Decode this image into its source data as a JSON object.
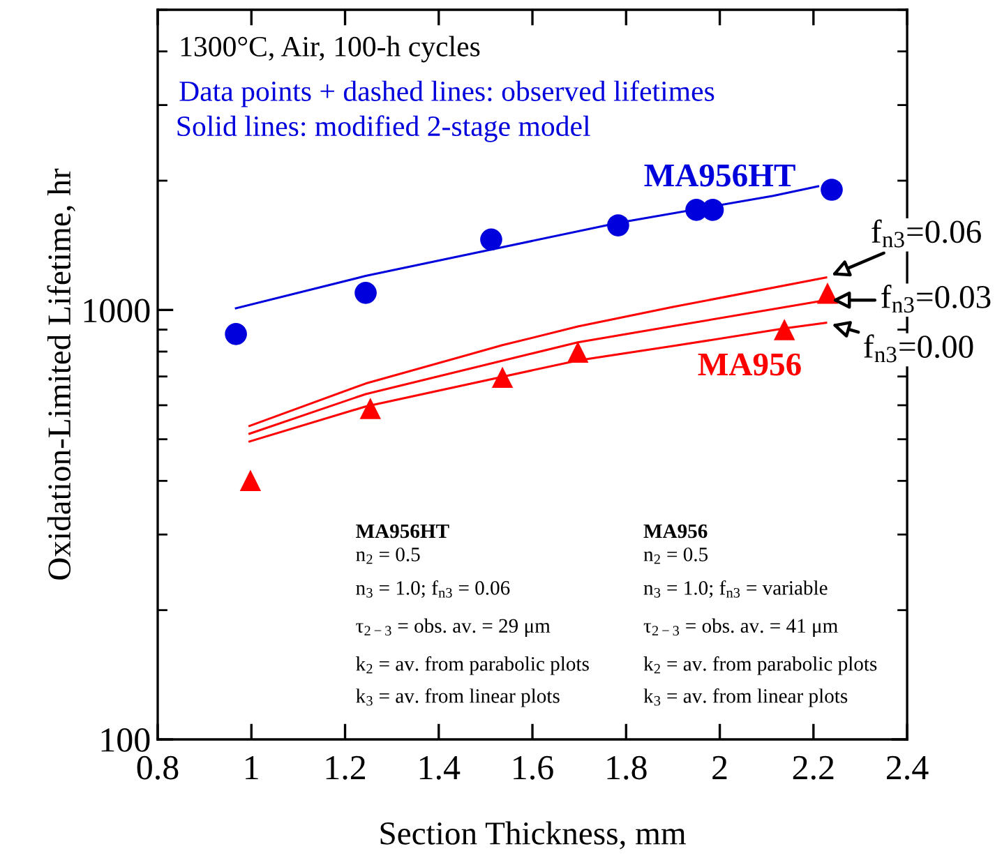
{
  "chart_data": {
    "type": "scatter",
    "xlabel": "Section Thickness, mm",
    "ylabel": "Oxidation-Limited Lifetime, hr",
    "log": "y",
    "xlim": [
      0.8,
      2.4
    ],
    "ylim": [
      100,
      5000
    ],
    "xticks": [
      0.8,
      1,
      1.2,
      1.4,
      1.6,
      1.8,
      2,
      2.2,
      2.4
    ],
    "yticks": [
      100,
      1000
    ],
    "grid": false,
    "legend": false,
    "series": [
      {
        "name": "MA956HT",
        "marker": "circle",
        "color": "#0000dd",
        "x": [
          0.967,
          1.244,
          1.512,
          1.783,
          1.95,
          1.985,
          2.239
        ],
        "values": [
          879,
          1096,
          1459,
          1574,
          1710,
          1710,
          1905
        ]
      },
      {
        "name": "MA956",
        "marker": "triangle",
        "color": "#ff0000",
        "x": [
          0.998,
          1.254,
          1.536,
          1.697,
          2.138,
          2.23
        ],
        "values": [
          401,
          590,
          697,
          798,
          900,
          1094
        ]
      },
      {
        "type": "line",
        "marker": "none",
        "line_style": "solid",
        "color": "#0000dd",
        "x": [
          0.967,
          1.244,
          1.512,
          1.783,
          2.114,
          2.21
        ],
        "values": [
          1009,
          1200,
          1383,
          1595,
          1844,
          1940
        ]
      },
      {
        "name": "f$_{n3}$=0.06",
        "type": "line",
        "marker": "none",
        "line_style": "solid",
        "color": "#ff0000",
        "x": [
          0.996,
          1.244,
          1.536,
          1.697,
          1.9,
          2.227
        ],
        "values": [
          537,
          674,
          828,
          915,
          1016,
          1190
        ]
      },
      {
        "name": "f$_{n3}$=0.03",
        "type": "line",
        "marker": "none",
        "line_style": "solid",
        "color": "#ff0000",
        "x": [
          0.996,
          1.244,
          1.697,
          1.9,
          2.227
        ],
        "values": [
          515,
          637,
          841,
          917,
          1054
        ]
      },
      {
        "name": "f$_{n3}$=0.00",
        "type": "line",
        "marker": "none",
        "line_style": "solid",
        "color": "#ff0000",
        "x": [
          0.996,
          1.244,
          1.697,
          1.9,
          2.138,
          2.227
        ],
        "values": [
          494,
          596,
          763,
          824,
          906,
          934
        ]
      }
    ],
    "annotations": [
      "1300°C, Air, 100-h cycles",
      "Data points + dashed lines: observed lifetimes",
      "Solid lines: modified 2-stage model",
      "MA956HT",
      "n$_{2}$ = 0.5",
      "n$_{3}$ = 1.0; f$_{n3}$ = 0.06",
      "τ$_{2−3}$ = obs. av. = 29 μm",
      "k$_{2}$ = av. from parabolic plots",
      "k$_{3}$ = av. from linear plots",
      "MA956",
      "n$_{2}$ = 0.5",
      "n$_{3}$ = 1.0; f$_{n3}$ = variable",
      "τ$_{2−3}$ = obs. av. = 41 μm",
      "k$_{2}$ = av. from parabolic plots",
      "k$_{3}$ = av. from linear plots"
    ]
  }
}
